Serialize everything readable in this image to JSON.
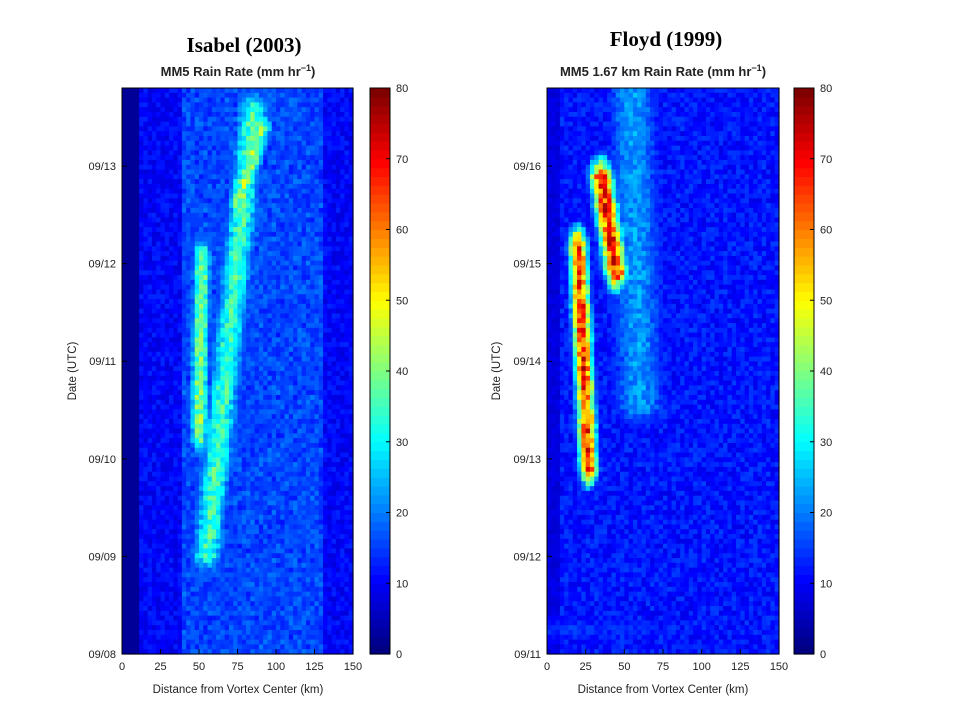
{
  "chart_data": [
    {
      "type": "heatmap",
      "storm_title": "Isabel (2003)",
      "title": "MM5 Rain Rate (mm hr",
      "title_sup": "−1",
      "title_close": ")",
      "xlabel": "Distance from Vortex Center (km)",
      "ylabel": "Date (UTC)",
      "xlim": [
        0,
        150
      ],
      "x_ticks": [
        "0",
        "25",
        "50",
        "75",
        "100",
        "125",
        "150"
      ],
      "x_tick_values": [
        0,
        25,
        50,
        75,
        100,
        125,
        150
      ],
      "y_ticks": [
        "09/08",
        "09/09",
        "09/10",
        "09/11",
        "09/12",
        "09/13"
      ],
      "ylim_days": [
        0,
        5.8
      ],
      "colorbar_ticks": [
        "0",
        "10",
        "20",
        "30",
        "40",
        "50",
        "60",
        "70",
        "80"
      ],
      "colorbar_range": [
        0,
        80
      ],
      "colormap": "jet",
      "features": [
        {
          "description": "band",
          "dist_start_km": 55,
          "dist_end_km": 85,
          "day_start": 1.0,
          "day_end": 5.6,
          "peak_rate": 38,
          "width_km": 14
        },
        {
          "description": "band",
          "dist_start_km": 50,
          "dist_end_km": 52,
          "day_start": 2.2,
          "day_end": 4.1,
          "peak_rate": 44,
          "width_km": 8
        },
        {
          "description": "band",
          "dist_start_km": 76,
          "dist_end_km": 90,
          "day_start": 4.6,
          "day_end": 5.4,
          "peak_rate": 46,
          "width_km": 10
        }
      ]
    },
    {
      "type": "heatmap",
      "storm_title": "Floyd (1999)",
      "title": "MM5 1.67 km Rain Rate (mm hr",
      "title_sup": "−1",
      "title_close": ")",
      "xlabel": "Distance from Vortex Center (km)",
      "ylabel": "Date (UTC)",
      "xlim": [
        0,
        150
      ],
      "x_ticks": [
        "0",
        "25",
        "50",
        "75",
        "100",
        "125",
        "150"
      ],
      "x_tick_values": [
        0,
        25,
        50,
        75,
        100,
        125,
        150
      ],
      "y_ticks": [
        "09/11",
        "09/12",
        "09/13",
        "09/14",
        "09/15",
        "09/16"
      ],
      "ylim_days": [
        0,
        5.8
      ],
      "colorbar_ticks": [
        "0",
        "10",
        "20",
        "30",
        "40",
        "50",
        "60",
        "70",
        "80"
      ],
      "colorbar_range": [
        0,
        80
      ],
      "colormap": "jet",
      "features": [
        {
          "description": "band",
          "dist_start_km": 27,
          "dist_end_km": 20,
          "day_start": 1.9,
          "day_end": 4.2,
          "peak_rate": 72,
          "width_km": 8
        },
        {
          "description": "band",
          "dist_start_km": 45,
          "dist_end_km": 35,
          "day_start": 3.9,
          "day_end": 4.9,
          "peak_rate": 74,
          "width_km": 10
        },
        {
          "description": "band",
          "dist_start_km": 60,
          "dist_end_km": 55,
          "day_start": 2.5,
          "day_end": 5.8,
          "peak_rate": 24,
          "width_km": 25
        },
        {
          "description": "band",
          "dist_start_km": 0,
          "dist_end_km": 150,
          "day_start": 0.25,
          "day_end": 0.25,
          "peak_rate": 16,
          "width_km": 200
        }
      ]
    }
  ]
}
